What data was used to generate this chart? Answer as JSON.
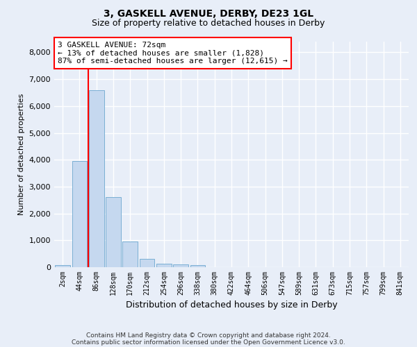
{
  "title1": "3, GASKELL AVENUE, DERBY, DE23 1GL",
  "title2": "Size of property relative to detached houses in Derby",
  "xlabel": "Distribution of detached houses by size in Derby",
  "ylabel": "Number of detached properties",
  "bar_labels": [
    "2sqm",
    "44sqm",
    "86sqm",
    "128sqm",
    "170sqm",
    "212sqm",
    "254sqm",
    "296sqm",
    "338sqm",
    "380sqm",
    "422sqm",
    "464sqm",
    "506sqm",
    "547sqm",
    "589sqm",
    "631sqm",
    "673sqm",
    "715sqm",
    "757sqm",
    "799sqm",
    "841sqm"
  ],
  "bar_values": [
    75,
    3950,
    6600,
    2620,
    950,
    310,
    120,
    95,
    75,
    0,
    0,
    0,
    0,
    0,
    0,
    0,
    0,
    0,
    0,
    0,
    0
  ],
  "bar_color": "#c5d8ef",
  "bar_edge_color": "#7aafd4",
  "property_line_x": 1.52,
  "ylim": [
    0,
    8400
  ],
  "yticks": [
    0,
    1000,
    2000,
    3000,
    4000,
    5000,
    6000,
    7000,
    8000
  ],
  "bg_color": "#e8eef8",
  "plot_bg_color": "#e8eef8",
  "grid_color": "#ffffff",
  "annotation_title": "3 GASKELL AVENUE: 72sqm",
  "annotation_line1": "← 13% of detached houses are smaller (1,828)",
  "annotation_line2": "87% of semi-detached houses are larger (12,615) →",
  "footer1": "Contains HM Land Registry data © Crown copyright and database right 2024.",
  "footer2": "Contains public sector information licensed under the Open Government Licence v3.0."
}
